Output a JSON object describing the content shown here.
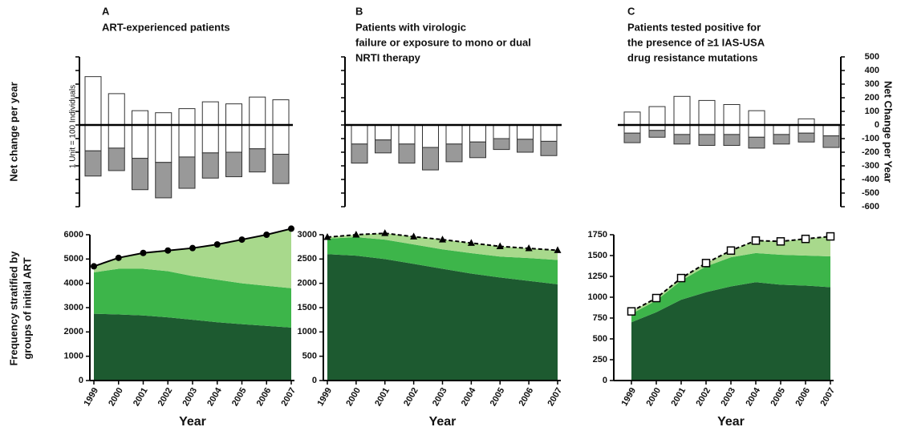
{
  "chart_data": [
    {
      "type": "bar",
      "label": "A",
      "title": [
        "ART-experienced patients"
      ],
      "ylabel": "Net change per year",
      "yaxis_side": "left",
      "annotation": "1 Unit = 100 Individuals",
      "series": [
        {
          "color": "#ffffff",
          "values": [
            355,
            230,
            105,
            90,
            120,
            170,
            155,
            205,
            185
          ]
        },
        {
          "color": "#ffffff",
          "values": [
            -190,
            -170,
            -245,
            -275,
            -235,
            -205,
            -200,
            -175,
            -215
          ]
        },
        {
          "color": "#999999",
          "values": [
            -185,
            -165,
            -230,
            -260,
            -230,
            -185,
            -180,
            -170,
            -215
          ]
        }
      ],
      "ylim": [
        -600,
        500
      ],
      "yticks": [
        500,
        400,
        300,
        200,
        100,
        0,
        -100,
        -200,
        -300,
        -400,
        -500,
        -600
      ],
      "ytick_labels": false
    },
    {
      "type": "bar",
      "label": "B",
      "title": [
        "Patients with virologic",
        "failure or exposure to mono or dual",
        "NRTI therapy"
      ],
      "yaxis_side": "left",
      "series": [
        {
          "color": "#ffffff",
          "values": [
            0,
            0,
            0,
            0,
            0,
            0,
            0,
            0,
            0
          ]
        },
        {
          "color": "#ffffff",
          "values": [
            -140,
            -110,
            -140,
            -165,
            -140,
            -125,
            -100,
            -105,
            -120
          ]
        },
        {
          "color": "#999999",
          "values": [
            -140,
            -95,
            -140,
            -165,
            -130,
            -115,
            -80,
            -95,
            -105
          ]
        }
      ],
      "ylim": [
        -600,
        500
      ],
      "yticks": [
        500,
        400,
        300,
        200,
        100,
        0,
        -100,
        -200,
        -300,
        -400,
        -500,
        -600
      ],
      "ytick_labels": false
    },
    {
      "type": "bar",
      "label": "C",
      "title": [
        "Patients tested positive for",
        "the presence of ≥1 IAS-USA",
        "drug resistance mutations"
      ],
      "ylabel": "Net Change per Year",
      "yaxis_side": "right",
      "series": [
        {
          "color": "#ffffff",
          "values": [
            95,
            135,
            210,
            180,
            150,
            105,
            0,
            45,
            0
          ]
        },
        {
          "color": "#ffffff",
          "values": [
            -60,
            -40,
            -70,
            -70,
            -70,
            -90,
            -70,
            -60,
            -80
          ]
        },
        {
          "color": "#999999",
          "values": [
            -70,
            -50,
            -70,
            -80,
            -80,
            -80,
            -70,
            -65,
            -85
          ]
        }
      ],
      "ylim": [
        -600,
        500
      ],
      "yticks": [
        500,
        400,
        300,
        200,
        100,
        0,
        -100,
        -200,
        -300,
        -400,
        -500,
        -600
      ],
      "ytick_labels": true
    },
    {
      "type": "area",
      "categories": [
        "1999",
        "2000",
        "2001",
        "2002",
        "2003",
        "2004",
        "2005",
        "2006",
        "2007"
      ],
      "xlabel": "Year",
      "ylabel": [
        "Frequency stratified by",
        "groups of initial ART"
      ],
      "series": [
        {
          "color": "#1d5a30",
          "values": [
            2750,
            2720,
            2680,
            2600,
            2500,
            2400,
            2320,
            2250,
            2180
          ]
        },
        {
          "color": "#3db54a",
          "values": [
            1700,
            1880,
            1920,
            1900,
            1800,
            1750,
            1680,
            1650,
            1620
          ]
        },
        {
          "color": "#a8d98c",
          "values": [
            250,
            450,
            650,
            850,
            1150,
            1450,
            1800,
            2100,
            2450
          ]
        }
      ],
      "line": {
        "values": [
          4700,
          5050,
          5250,
          5350,
          5450,
          5600,
          5800,
          6000,
          6250
        ],
        "marker": "circle",
        "dashed": false,
        "color": "#000000"
      },
      "ylim": [
        0,
        6000
      ],
      "yticks": [
        0,
        1000,
        2000,
        3000,
        4000,
        5000,
        6000
      ]
    },
    {
      "type": "area",
      "categories": [
        "1999",
        "2000",
        "2001",
        "2002",
        "2003",
        "2004",
        "2005",
        "2006",
        "2007"
      ],
      "xlabel": "Year",
      "series": [
        {
          "color": "#1d5a30",
          "values": [
            2600,
            2570,
            2500,
            2400,
            2300,
            2200,
            2120,
            2050,
            1980
          ]
        },
        {
          "color": "#3db54a",
          "values": [
            320,
            380,
            400,
            400,
            400,
            420,
            430,
            470,
            500
          ]
        },
        {
          "color": "#a8d98c",
          "values": [
            30,
            50,
            130,
            160,
            200,
            210,
            210,
            200,
            200
          ]
        }
      ],
      "line": {
        "values": [
          2950,
          3000,
          3030,
          2960,
          2900,
          2830,
          2760,
          2720,
          2680
        ],
        "marker": "triangle",
        "dashed": true,
        "color": "#000000"
      },
      "ylim": [
        0,
        3000
      ],
      "yticks": [
        0,
        500,
        1000,
        1500,
        2000,
        2500,
        3000
      ]
    },
    {
      "type": "area",
      "categories": [
        "1999",
        "2000",
        "2001",
        "2002",
        "2003",
        "2004",
        "2005",
        "2006",
        "2007"
      ],
      "xlabel": "Year",
      "series": [
        {
          "color": "#1d5a30",
          "values": [
            700,
            820,
            970,
            1060,
            1130,
            1180,
            1150,
            1140,
            1120
          ]
        },
        {
          "color": "#3db54a",
          "values": [
            100,
            140,
            230,
            310,
            350,
            350,
            360,
            360,
            370
          ]
        },
        {
          "color": "#a8d98c",
          "values": [
            30,
            30,
            30,
            40,
            80,
            150,
            160,
            200,
            240
          ]
        }
      ],
      "line": {
        "values": [
          830,
          990,
          1230,
          1410,
          1560,
          1680,
          1670,
          1700,
          1730
        ],
        "marker": "square",
        "dashed": true,
        "color": "#000000"
      },
      "ylim": [
        0,
        1750
      ],
      "yticks": [
        0,
        250,
        500,
        750,
        1000,
        1250,
        1500,
        1750
      ]
    }
  ]
}
